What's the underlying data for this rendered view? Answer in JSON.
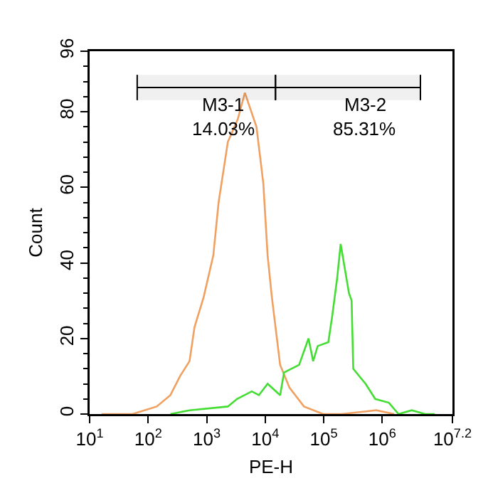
{
  "chart_data": {
    "type": "line",
    "xlabel": "PE-H",
    "ylabel": "Count",
    "log": "x",
    "grid": false,
    "marker": "none",
    "line_style": "solid",
    "xlim": [
      10,
      15848932
    ],
    "xticks": [
      {
        "value": 10,
        "label": "10$^{1}$"
      },
      {
        "value": 100,
        "label": "10$^{2}$"
      },
      {
        "value": 1000,
        "label": "10$^{3}$"
      },
      {
        "value": 10000,
        "label": "10$^{4}$"
      },
      {
        "value": 100000,
        "label": "10$^{5}$"
      },
      {
        "value": 1000000,
        "label": "10$^{6}$"
      },
      {
        "value": 15848932,
        "label": "10$^{7.2}$"
      }
    ],
    "ylim": [
      0,
      96
    ],
    "yticks": [
      0,
      20,
      40,
      60,
      80,
      96
    ],
    "series": [
      {
        "color": "#f0a060",
        "x": [
          16,
          54,
          140,
          240,
          350,
          510,
          620,
          890,
          1300,
          1600,
          2300,
          3400,
          4500,
          7100,
          9300,
          11000,
          13000,
          18000,
          26000,
          46000,
          98000,
          200000,
          790000,
          1600000
        ],
        "values": [
          0,
          0,
          2,
          5,
          10,
          14,
          23,
          31,
          42,
          56,
          72,
          78,
          85,
          76,
          61,
          42,
          31,
          13,
          7,
          2,
          0,
          0,
          1,
          0
        ]
      },
      {
        "color": "#44dd33",
        "x": [
          240,
          510,
          2300,
          3300,
          5900,
          7800,
          11000,
          18000,
          21000,
          38000,
          55000,
          66000,
          79000,
          120000,
          140000,
          170000,
          195000,
          270000,
          300000,
          320000,
          520000,
          760000,
          1300000,
          1900000,
          3200000,
          5400000,
          7900000
        ],
        "values": [
          0,
          1,
          2,
          4,
          6,
          5,
          8,
          5,
          11,
          13,
          20,
          14,
          18,
          19,
          26,
          36,
          45,
          32,
          30,
          12,
          8,
          4,
          3,
          0,
          1,
          0,
          0
        ]
      }
    ],
    "bands": [
      {
        "axis": "x",
        "from": 65,
        "to": 15000,
        "label": "M3-1"
      },
      {
        "axis": "x",
        "from": 15000,
        "to": 4500000,
        "label": "M3-2"
      }
    ],
    "annotations": [
      "14.03%",
      "85.31%"
    ]
  }
}
